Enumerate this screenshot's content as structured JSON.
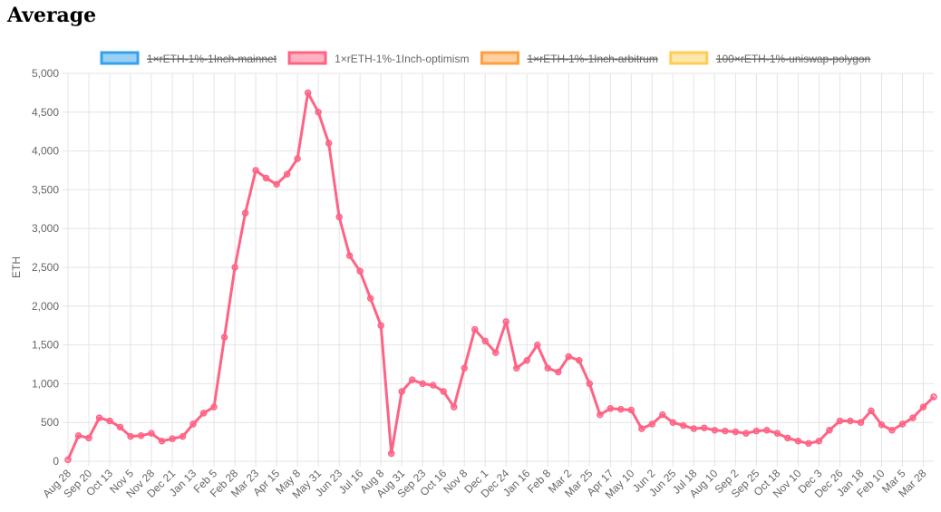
{
  "chart_data": {
    "type": "line",
    "title": "Average",
    "y_label": "ETH",
    "categories": [
      "Aug 28",
      null,
      "Sep 20",
      null,
      "Oct 13",
      null,
      "Nov 5",
      null,
      "Nov 28",
      null,
      "Dec 21",
      null,
      "Jan 13",
      null,
      "Feb 5",
      null,
      "Feb 28",
      null,
      "Mar 23",
      null,
      "Apr 15",
      null,
      "May 8",
      null,
      "May 31",
      null,
      "Jun 23",
      null,
      "Jul 16",
      null,
      "Aug 8",
      null,
      "Aug 31",
      null,
      "Sep 23",
      null,
      "Oct 16",
      null,
      "Nov 8",
      null,
      "Dec 1",
      null,
      "Dec 24",
      null,
      "Jan 16",
      null,
      "Feb 8",
      null,
      "Mar 2",
      null,
      "Mar 25",
      null,
      "Apr 17",
      null,
      "May 10",
      null,
      "Jun 2",
      null,
      "Jun 25",
      null,
      "Jul 18",
      null,
      "Aug 10",
      null,
      "Sep 2",
      null,
      "Sep 25",
      null,
      "Oct 18",
      null,
      "Nov 10",
      null,
      "Dec 3",
      null,
      "Dec 26",
      null,
      "Jan 18",
      null,
      "Feb 10",
      null,
      "Mar 5",
      null,
      "Mar 28",
      null
    ],
    "series": [
      {
        "name": "1×rETH-1%-1Inch-mainnet",
        "color": "#36a2eb",
        "hidden": true
      },
      {
        "name": "1×rETH-1%-1Inch-optimism",
        "color": "#ff6384",
        "hidden": false,
        "values": [
          20,
          330,
          300,
          560,
          520,
          440,
          320,
          330,
          360,
          260,
          290,
          320,
          480,
          620,
          700,
          1600,
          2500,
          3200,
          3750,
          3650,
          3570,
          3700,
          3900,
          4750,
          4500,
          4100,
          3150,
          2650,
          2450,
          2100,
          1750,
          100,
          900,
          1050,
          1000,
          980,
          900,
          700,
          1200,
          1700,
          1550,
          1400,
          1800,
          1200,
          1300,
          1500,
          1200,
          1150,
          1350,
          1300,
          1000,
          600,
          680,
          670,
          660,
          420,
          480,
          600,
          500,
          460,
          420,
          430,
          400,
          390,
          380,
          360,
          390,
          400,
          360,
          300,
          260,
          230,
          260,
          400,
          520,
          520,
          500,
          650,
          470,
          400,
          480,
          560,
          700,
          830
        ]
      },
      {
        "name": "1×rETH-1%-1Inch-arbitrum",
        "color": "#ff9f40",
        "hidden": true
      },
      {
        "name": "100×rETH-1%-uniswap-polygon",
        "color": "#ffcd56",
        "hidden": true
      }
    ],
    "ylim": [
      0,
      5000
    ],
    "yticks": [
      0,
      {
        "value": 500,
        "label": "500"
      },
      {
        "value": 1000,
        "label": "1,000"
      },
      {
        "value": 1500,
        "label": "1,500"
      },
      {
        "value": 2000,
        "label": "2,000"
      },
      {
        "value": 2500,
        "label": "2,500"
      },
      {
        "value": 3000,
        "label": "3,000"
      },
      {
        "value": 3500,
        "label": "3,500"
      },
      {
        "value": 4000,
        "label": "4,000"
      },
      {
        "value": 4500,
        "label": "4,500"
      },
      {
        "value": 5000,
        "label": "5,000"
      }
    ],
    "grid": true,
    "legend": "top"
  }
}
